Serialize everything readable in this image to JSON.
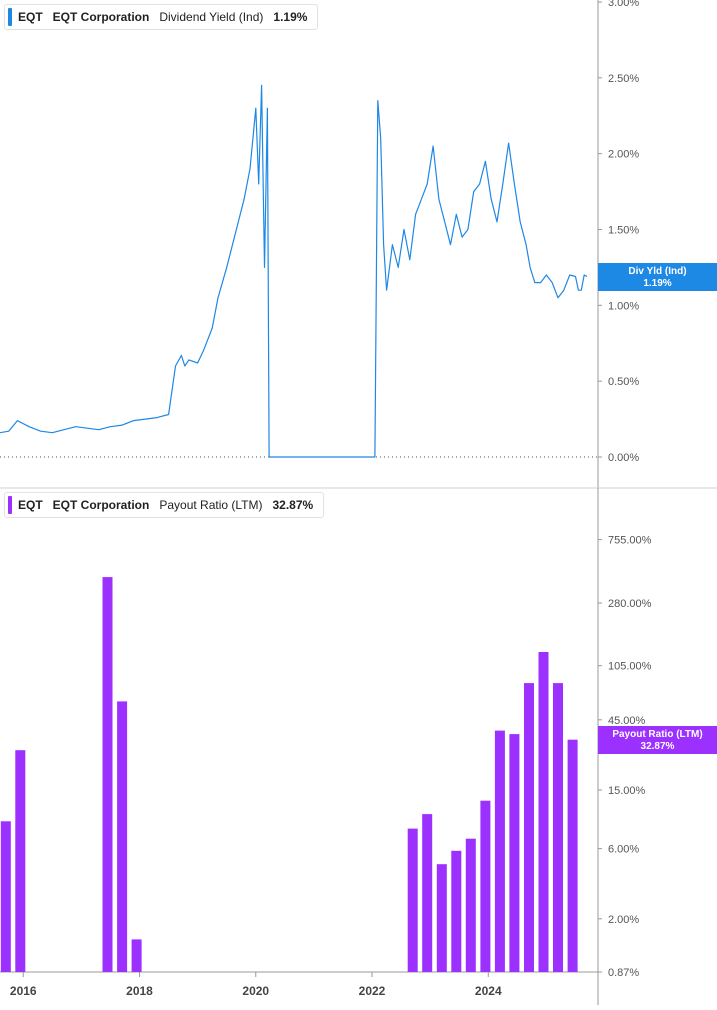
{
  "colors": {
    "yield_line": "#1e88e5",
    "payout_bar": "#9b30ff",
    "axis": "#999999",
    "text": "#555555"
  },
  "chart_data": [
    {
      "type": "line",
      "ticker": "EQT",
      "company": "EQT Corporation",
      "metric": "Dividend Yield (Ind)",
      "current_value": "1.19%",
      "badge_label": "Div Yld (Ind)",
      "y_ticks": [
        "0.00%",
        "0.50%",
        "1.00%",
        "1.50%",
        "2.00%",
        "2.50%",
        "3.00%"
      ],
      "ylim": [
        0,
        3
      ],
      "xlim": [
        2015.6,
        2025.75
      ],
      "series": [
        {
          "x": [
            2015.6,
            2015.75,
            2015.9,
            2016.1,
            2016.3,
            2016.5,
            2016.7,
            2016.9,
            2017.1,
            2017.3,
            2017.5,
            2017.7,
            2017.9,
            2018.1,
            2018.3,
            2018.5,
            2018.62,
            2018.72,
            2018.78,
            2018.85,
            2019.0,
            2019.1,
            2019.25,
            2019.35,
            2019.5,
            2019.6,
            2019.7,
            2019.8,
            2019.9,
            2020.0,
            2020.05,
            2020.1,
            2020.15,
            2020.2,
            2020.23,
            2020.25,
            2020.28,
            2020.8,
            2021.4,
            2022.05,
            2022.1,
            2022.15,
            2022.2,
            2022.25,
            2022.35,
            2022.45,
            2022.55,
            2022.65,
            2022.75,
            2022.85,
            2022.95,
            2023.05,
            2023.15,
            2023.25,
            2023.35,
            2023.45,
            2023.55,
            2023.65,
            2023.75,
            2023.85,
            2023.95,
            2024.05,
            2024.15,
            2024.25,
            2024.35,
            2024.45,
            2024.55,
            2024.65,
            2024.72,
            2024.8,
            2024.9,
            2025.0,
            2025.1,
            2025.2,
            2025.3,
            2025.4,
            2025.5,
            2025.55,
            2025.6,
            2025.65,
            2025.7
          ],
          "y": [
            0.16,
            0.17,
            0.24,
            0.2,
            0.17,
            0.16,
            0.18,
            0.2,
            0.19,
            0.18,
            0.2,
            0.21,
            0.24,
            0.25,
            0.26,
            0.28,
            0.6,
            0.67,
            0.6,
            0.64,
            0.62,
            0.7,
            0.85,
            1.05,
            1.25,
            1.4,
            1.55,
            1.7,
            1.9,
            2.3,
            1.8,
            2.45,
            1.25,
            2.3,
            0.0,
            0.0,
            0.0,
            0.0,
            0.0,
            0.0,
            2.35,
            2.1,
            1.4,
            1.1,
            1.4,
            1.25,
            1.5,
            1.3,
            1.6,
            1.7,
            1.8,
            2.05,
            1.7,
            1.55,
            1.4,
            1.6,
            1.45,
            1.5,
            1.75,
            1.8,
            1.95,
            1.7,
            1.55,
            1.8,
            2.07,
            1.8,
            1.55,
            1.4,
            1.25,
            1.15,
            1.15,
            1.2,
            1.15,
            1.05,
            1.1,
            1.2,
            1.19,
            1.1,
            1.1,
            1.2,
            1.19
          ]
        }
      ]
    },
    {
      "type": "bar",
      "ticker": "EQT",
      "company": "EQT Corporation",
      "metric": "Payout Ratio (LTM)",
      "current_value": "32.87%",
      "badge_label": "Payout Ratio (LTM)",
      "y_scale": "log",
      "ylim": [
        0.87,
        1200
      ],
      "y_ticks": [
        "0.87%",
        "2.00%",
        "6.00%",
        "15.00%",
        "45.00%",
        "105.00%",
        "280.00%",
        "755.00%"
      ],
      "x_ticks": [
        "2016",
        "2018",
        "2020",
        "2022",
        "2024"
      ],
      "xlim": [
        2015.6,
        2025.75
      ],
      "bars": [
        {
          "x": 2015.7,
          "value": 9.2
        },
        {
          "x": 2015.95,
          "value": 28
        },
        {
          "x": 2017.45,
          "value": 420
        },
        {
          "x": 2017.7,
          "value": 60
        },
        {
          "x": 2017.95,
          "value": 1.45
        },
        {
          "x": 2022.7,
          "value": 8.2
        },
        {
          "x": 2022.95,
          "value": 10.3
        },
        {
          "x": 2023.2,
          "value": 4.7
        },
        {
          "x": 2023.45,
          "value": 5.8
        },
        {
          "x": 2023.7,
          "value": 7
        },
        {
          "x": 2023.95,
          "value": 12.7
        },
        {
          "x": 2024.2,
          "value": 38
        },
        {
          "x": 2024.45,
          "value": 36
        },
        {
          "x": 2024.7,
          "value": 80
        },
        {
          "x": 2024.95,
          "value": 130
        },
        {
          "x": 2025.2,
          "value": 80
        },
        {
          "x": 2025.45,
          "value": 33
        }
      ]
    }
  ]
}
